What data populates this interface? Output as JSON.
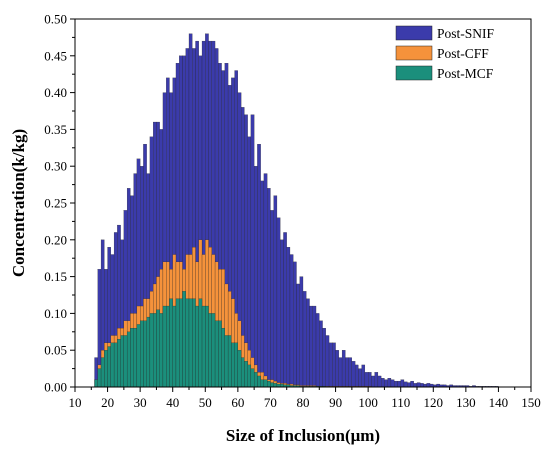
{
  "chart_data": {
    "type": "bar",
    "xlabel": "Size of Inclusion(μm)",
    "ylabel": "Concentration(k/kg)",
    "xlim": [
      10,
      150
    ],
    "ylim": [
      0,
      0.5
    ],
    "bin_width": 1,
    "x_ticks": [
      10,
      20,
      30,
      40,
      50,
      60,
      70,
      80,
      90,
      100,
      110,
      120,
      130,
      140,
      150
    ],
    "y_ticks": [
      0.0,
      0.05,
      0.1,
      0.15,
      0.2,
      0.25,
      0.3,
      0.35,
      0.4,
      0.45,
      0.5
    ],
    "grid": false,
    "legend_position": "top-right",
    "x": [
      16,
      17,
      18,
      19,
      20,
      21,
      22,
      23,
      24,
      25,
      26,
      27,
      28,
      29,
      30,
      31,
      32,
      33,
      34,
      35,
      36,
      37,
      38,
      39,
      40,
      41,
      42,
      43,
      44,
      45,
      46,
      47,
      48,
      49,
      50,
      51,
      52,
      53,
      54,
      55,
      56,
      57,
      58,
      59,
      60,
      61,
      62,
      63,
      64,
      65,
      66,
      67,
      68,
      69,
      70,
      71,
      72,
      73,
      74,
      75,
      76,
      77,
      78,
      79,
      80,
      81,
      82,
      83,
      84,
      85,
      86,
      87,
      88,
      89,
      90,
      91,
      92,
      93,
      94,
      95,
      96,
      97,
      98,
      99,
      100,
      101,
      102,
      103,
      104,
      105,
      106,
      107,
      108,
      109,
      110,
      111,
      112,
      113,
      114,
      115,
      116,
      117,
      118,
      119,
      120,
      121,
      122,
      123,
      124,
      125,
      126,
      127,
      128,
      129,
      130,
      131,
      132,
      133,
      134,
      135,
      136,
      137,
      138,
      139,
      140,
      141,
      142,
      143,
      144,
      145,
      146,
      147,
      148,
      149
    ],
    "series": [
      {
        "name": "Post-SNIF",
        "color": "#3b3bab",
        "values": [
          0.04,
          0.16,
          0.2,
          0.16,
          0.19,
          0.18,
          0.21,
          0.22,
          0.2,
          0.24,
          0.27,
          0.26,
          0.29,
          0.31,
          0.3,
          0.33,
          0.29,
          0.34,
          0.36,
          0.36,
          0.35,
          0.4,
          0.42,
          0.4,
          0.42,
          0.44,
          0.45,
          0.45,
          0.46,
          0.48,
          0.46,
          0.47,
          0.45,
          0.47,
          0.48,
          0.47,
          0.47,
          0.46,
          0.44,
          0.43,
          0.44,
          0.41,
          0.42,
          0.43,
          0.4,
          0.38,
          0.37,
          0.34,
          0.37,
          0.3,
          0.33,
          0.28,
          0.29,
          0.27,
          0.24,
          0.26,
          0.23,
          0.2,
          0.21,
          0.19,
          0.18,
          0.17,
          0.14,
          0.15,
          0.13,
          0.12,
          0.11,
          0.11,
          0.1,
          0.09,
          0.08,
          0.07,
          0.06,
          0.06,
          0.05,
          0.04,
          0.05,
          0.04,
          0.04,
          0.035,
          0.03,
          0.025,
          0.03,
          0.02,
          0.02,
          0.015,
          0.02,
          0.015,
          0.012,
          0.01,
          0.012,
          0.01,
          0.008,
          0.008,
          0.01,
          0.007,
          0.006,
          0.008,
          0.005,
          0.006,
          0.005,
          0.004,
          0.005,
          0.004,
          0.003,
          0.004,
          0.003,
          0.003,
          0.002,
          0.003,
          0.002,
          0.002,
          0.002,
          0.002,
          0.002,
          0.001,
          0.002,
          0.001,
          0.001,
          0.001,
          0.001,
          0.001,
          0.001,
          0.001,
          0.0005,
          0.0005,
          0.0005,
          0.0005,
          0.0005,
          0.0005,
          0.0005,
          0.0005,
          0.0005,
          0.0005
        ]
      },
      {
        "name": "Post-CFF",
        "color": "#f5923b",
        "values": [
          0.01,
          0.03,
          0.05,
          0.06,
          0.06,
          0.07,
          0.07,
          0.08,
          0.08,
          0.09,
          0.09,
          0.1,
          0.1,
          0.11,
          0.11,
          0.12,
          0.12,
          0.13,
          0.14,
          0.15,
          0.16,
          0.17,
          0.17,
          0.16,
          0.18,
          0.17,
          0.17,
          0.16,
          0.18,
          0.18,
          0.19,
          0.17,
          0.2,
          0.18,
          0.2,
          0.19,
          0.18,
          0.17,
          0.16,
          0.16,
          0.14,
          0.13,
          0.12,
          0.1,
          0.09,
          0.07,
          0.06,
          0.05,
          0.04,
          0.03,
          0.02,
          0.02,
          0.015,
          0.01,
          0.01,
          0.008,
          0.006,
          0.005,
          0.005,
          0.004,
          0.004,
          0.003,
          0.003,
          0.002,
          0.002,
          0.002,
          0.002,
          0.002,
          0.001,
          0.001,
          0.001,
          0.001,
          0.001,
          0.001,
          0.001,
          0.001,
          0.001,
          0.001,
          0.001,
          0.001,
          0.001,
          0.001,
          0.001,
          0.001,
          0.001,
          0.0005,
          0.0005,
          0.0005,
          0.0005,
          0.0005,
          0.0005,
          0.0005,
          0.0005,
          0.0005,
          0.0005,
          0.0005,
          0.0005,
          0.0005,
          0.0005,
          0.0005,
          0.0005,
          0.0005,
          0.0005,
          0.0005,
          0.0005,
          0.0005,
          0.0005,
          0.0005,
          0.0005,
          0.0005,
          0.0005,
          0.0005,
          0.0005,
          0.0005,
          0.0005,
          0.0005,
          0.0005,
          0.0005,
          0.0005,
          0.0005,
          0.0005,
          0.0005,
          0.0005,
          0.0005,
          0.0005,
          0.0005,
          0.0005,
          0.0005,
          0.0005,
          0.0005,
          0.0005,
          0.0005,
          0.0005,
          0.0005
        ]
      },
      {
        "name": "Post-MCF",
        "color": "#1b8f7c",
        "values": [
          0.01,
          0.025,
          0.04,
          0.05,
          0.055,
          0.06,
          0.06,
          0.065,
          0.07,
          0.07,
          0.075,
          0.08,
          0.08,
          0.085,
          0.09,
          0.09,
          0.095,
          0.1,
          0.1,
          0.105,
          0.1,
          0.11,
          0.11,
          0.12,
          0.11,
          0.12,
          0.12,
          0.13,
          0.12,
          0.12,
          0.12,
          0.11,
          0.12,
          0.11,
          0.11,
          0.1,
          0.1,
          0.09,
          0.09,
          0.08,
          0.07,
          0.07,
          0.06,
          0.06,
          0.05,
          0.04,
          0.035,
          0.03,
          0.025,
          0.02,
          0.015,
          0.01,
          0.01,
          0.008,
          0.006,
          0.005,
          0.004,
          0.004,
          0.003,
          0.003,
          0.002,
          0.002,
          0.002,
          0.001,
          0.001,
          0.001,
          0.001,
          0.001,
          0.001,
          0.001,
          0.001,
          0.0005,
          0.0005,
          0.0005,
          0.0005,
          0.0005,
          0.0005,
          0.0005,
          0.0005,
          0.0005,
          0.0005,
          0.0005,
          0.0005,
          0.0005,
          0.0005,
          0.0005,
          0.0005,
          0.0005,
          0.0005,
          0.0005,
          0.0005,
          0.0005,
          0.0005,
          0.0005,
          0.0005,
          0.0005,
          0.0005,
          0.0005,
          0.0005,
          0.0005,
          0.0005,
          0.0005,
          0.0005,
          0.0005,
          0.0005,
          0.0005,
          0.0005,
          0.0005,
          0.0005,
          0.0005,
          0.0005,
          0.0005,
          0.0005,
          0.0005,
          0.0005,
          0.0005,
          0.0005,
          0.0005,
          0.0005,
          0.0005,
          0.0005,
          0.0005,
          0.0005,
          0.0005,
          0.0005,
          0.0005,
          0.0005,
          0.0005,
          0.0005,
          0.0005,
          0.0005,
          0.0005,
          0.0005,
          0.0005
        ]
      }
    ]
  }
}
